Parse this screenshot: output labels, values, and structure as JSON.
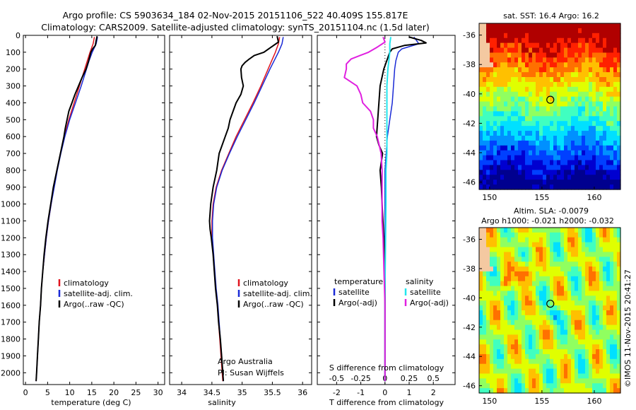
{
  "header": {
    "line1": "Argo profile: CS 5903634_184 02-Nov-2015 20151106_522 40.409S 155.817E",
    "line2": "Climatology: CARS2009. Satellite-adjusted climatology: synTS_20151104.nc (1.5d later)"
  },
  "colors": {
    "climatology": "#e0141e",
    "satellite": "#1a2ad6",
    "argo": "#000000",
    "salinity_sat": "#22e6ee",
    "salinity_argo": "#e020e0"
  },
  "chart_data": [
    {
      "type": "line",
      "name": "temperature",
      "xlabel": "temperature (deg C)",
      "xlim": [
        -0.5,
        31.5
      ],
      "xticks": [
        "0",
        "5",
        "10",
        "15",
        "20",
        "25",
        "30"
      ],
      "ylim": [
        0,
        2070
      ],
      "yticks": [
        "0",
        "100",
        "200",
        "300",
        "400",
        "500",
        "600",
        "700",
        "800",
        "900",
        "1000",
        "1100",
        "1200",
        "1300",
        "1400",
        "1500",
        "1600",
        "1700",
        "1800",
        "1900",
        "2000"
      ],
      "legend": [
        "climatology",
        "satellite-adj. clim.",
        "Argo(..raw -QC)"
      ],
      "series": [
        {
          "name": "climatology",
          "depth": [
            10,
            50,
            100,
            150,
            200,
            300,
            400,
            500,
            600,
            700,
            800,
            900,
            1000,
            1100,
            1200,
            1300,
            1400,
            1500,
            1600,
            1700,
            1800,
            1900,
            2000,
            2050
          ],
          "values": [
            15.6,
            15.3,
            14.6,
            14.0,
            13.4,
            12.2,
            11.0,
            9.8,
            8.8,
            7.9,
            7.1,
            6.4,
            5.8,
            5.2,
            4.7,
            4.3,
            3.9,
            3.6,
            3.4,
            3.1,
            2.9,
            2.7,
            2.5,
            2.4
          ]
        },
        {
          "name": "satellite",
          "depth": [
            10,
            50,
            100,
            150,
            200,
            300,
            400,
            500,
            600,
            700,
            800,
            900,
            1000,
            1100,
            1200,
            1300,
            1400,
            1500,
            1600,
            1700,
            1800,
            1900,
            2000,
            2050
          ],
          "values": [
            16.3,
            16.0,
            15.1,
            14.4,
            13.8,
            12.6,
            11.3,
            10.0,
            8.9,
            8.0,
            7.2,
            6.5,
            5.8,
            5.2,
            4.7,
            4.3,
            3.9,
            3.6,
            3.4,
            3.1,
            2.9,
            2.7,
            2.5,
            2.4
          ]
        },
        {
          "name": "argo",
          "depth": [
            5,
            30,
            60,
            80,
            100,
            150,
            200,
            250,
            300,
            350,
            400,
            450,
            500,
            550,
            600,
            700,
            800,
            900,
            1000,
            1100,
            1200,
            1300,
            1400,
            1500,
            1600,
            1700,
            1800,
            1900,
            2000,
            2050
          ],
          "values": [
            16.2,
            16.0,
            15.8,
            15.2,
            14.8,
            14.3,
            13.7,
            12.8,
            12.0,
            11.2,
            10.5,
            9.8,
            9.4,
            9.0,
            8.7,
            7.9,
            7.1,
            6.3,
            5.7,
            5.1,
            4.6,
            4.2,
            3.9,
            3.6,
            3.4,
            3.1,
            2.9,
            2.7,
            2.5,
            2.4
          ]
        }
      ]
    },
    {
      "type": "line",
      "name": "salinity",
      "xlabel": "salinity",
      "xlim": [
        33.8,
        36.15
      ],
      "xticks": [
        "34",
        "34.5",
        "35",
        "35.5",
        "36"
      ],
      "ylim": [
        0,
        2070
      ],
      "legend": [
        "climatology",
        "satellite-adj. clim.",
        "Argo(..raw -QC)"
      ],
      "annotation": [
        "Argo Australia",
        "PI: Susan Wijffels"
      ],
      "series": [
        {
          "name": "climatology",
          "depth": [
            10,
            50,
            100,
            150,
            200,
            300,
            400,
            500,
            600,
            700,
            800,
            900,
            1000,
            1100,
            1200,
            1300,
            1400,
            1500,
            1600,
            1700,
            1800,
            1900,
            2000,
            2050
          ],
          "values": [
            35.62,
            35.6,
            35.55,
            35.49,
            35.43,
            35.31,
            35.18,
            35.04,
            34.9,
            34.78,
            34.66,
            34.57,
            34.52,
            34.5,
            34.5,
            34.52,
            34.54,
            34.56,
            34.59,
            34.61,
            34.63,
            34.65,
            34.67,
            34.68
          ]
        },
        {
          "name": "satellite",
          "depth": [
            10,
            50,
            100,
            150,
            200,
            300,
            400,
            500,
            600,
            700,
            800,
            900,
            1000,
            1100,
            1200,
            1300,
            1400,
            1500,
            1600,
            1700,
            1800,
            1900,
            2000,
            2050
          ],
          "values": [
            35.68,
            35.66,
            35.6,
            35.53,
            35.46,
            35.33,
            35.2,
            35.06,
            34.92,
            34.79,
            34.67,
            34.58,
            34.53,
            34.51,
            34.51,
            34.53,
            34.55,
            34.57,
            34.6,
            34.62,
            34.64,
            34.66,
            34.68,
            34.69
          ]
        },
        {
          "name": "argo",
          "depth": [
            5,
            40,
            70,
            100,
            120,
            140,
            160,
            180,
            200,
            250,
            300,
            350,
            400,
            450,
            500,
            550,
            600,
            700,
            800,
            900,
            1000,
            1100,
            1150,
            1200,
            1300,
            1400,
            1500,
            1600,
            1700,
            1800,
            1900,
            2000,
            2050
          ],
          "values": [
            35.58,
            35.6,
            35.48,
            35.36,
            35.2,
            35.12,
            35.05,
            35.0,
            34.98,
            34.99,
            35.02,
            34.98,
            34.9,
            34.85,
            34.8,
            34.77,
            34.72,
            34.62,
            34.58,
            34.52,
            34.48,
            34.46,
            34.47,
            34.49,
            34.52,
            34.54,
            34.56,
            34.59,
            34.61,
            34.64,
            34.66,
            34.68,
            34.69
          ]
        }
      ]
    },
    {
      "type": "line",
      "name": "difference",
      "xlabel": "T difference from climatology",
      "xlabel_top": "S difference from climatology",
      "xlim": [
        -2.8,
        2.9
      ],
      "xticks": [
        "-2",
        "-1",
        "0",
        "1",
        "2"
      ],
      "xticks_top": [
        "-0.5",
        "-0.25",
        "0",
        "0.25",
        "0.5"
      ],
      "legend_temperature": [
        "temperature",
        "satellite",
        "Argo(-adj)"
      ],
      "legend_salinity": [
        "salinity",
        "satellite",
        "Argo(-adj)"
      ],
      "series": [
        {
          "name": "T satellite",
          "depth": [
            10,
            30,
            50,
            80,
            100,
            150,
            200,
            300,
            400,
            500,
            600,
            700,
            800,
            1000,
            1200,
            1500,
            2050
          ],
          "values": [
            1.2,
            1.3,
            1.4,
            0.7,
            0.55,
            0.45,
            0.4,
            0.35,
            0.3,
            0.2,
            0.1,
            0.05,
            0.0,
            0.0,
            0.0,
            0.0,
            0.0
          ]
        },
        {
          "name": "T argo",
          "depth": [
            10,
            30,
            45,
            60,
            80,
            100,
            200,
            300,
            400,
            500,
            600,
            650,
            700,
            800,
            900,
            1000,
            1200,
            1400,
            1600,
            2000,
            2050
          ],
          "values": [
            1.0,
            1.5,
            1.7,
            0.8,
            0.3,
            0.2,
            -0.05,
            -0.2,
            -0.25,
            -0.3,
            -0.35,
            -0.25,
            -0.1,
            -0.2,
            -0.15,
            -0.12,
            -0.05,
            0.0,
            0.0,
            0.0,
            0.0
          ]
        },
        {
          "name": "S satellite",
          "depth": [
            10,
            50,
            100,
            150,
            200,
            300,
            400,
            500,
            600,
            700,
            800,
            1000,
            1500,
            2050
          ],
          "values": [
            0.06,
            0.05,
            0.05,
            0.04,
            0.03,
            0.02,
            0.02,
            0.02,
            0.02,
            0.02,
            0.01,
            0.01,
            0.0,
            0.0
          ]
        },
        {
          "name": "S argo",
          "depth": [
            10,
            40,
            70,
            100,
            140,
            170,
            200,
            250,
            300,
            350,
            400,
            450,
            500,
            550,
            600,
            700,
            800,
            900,
            1000,
            1100,
            1200,
            1400,
            1600,
            2050
          ],
          "values": [
            -0.02,
            0.0,
            -0.08,
            -0.17,
            -0.35,
            -0.4,
            -0.4,
            -0.42,
            -0.29,
            -0.25,
            -0.23,
            -0.15,
            -0.12,
            -0.12,
            -0.08,
            -0.04,
            -0.03,
            -0.03,
            -0.03,
            -0.03,
            -0.02,
            -0.01,
            0.0,
            0.0
          ]
        }
      ]
    },
    {
      "type": "heatmap",
      "name": "sst_map",
      "title": "sat. SST: 16.4 Argo: 16.2",
      "xlim": [
        149,
        162.5
      ],
      "ylim": [
        -46.5,
        -35.2
      ],
      "xticks": [
        "150",
        "155",
        "160"
      ],
      "yticks": [
        "-36",
        "-38",
        "-40",
        "-42",
        "-44",
        "-46"
      ],
      "marker": [
        155.8,
        -40.4
      ]
    },
    {
      "type": "heatmap",
      "name": "sla_map",
      "title1": "Altim. SLA: -0.0079",
      "title2": "Argo h1000: -0.021 h2000: -0.032",
      "xlim": [
        149,
        162.5
      ],
      "ylim": [
        -46.5,
        -35.2
      ],
      "xticks": [
        "150",
        "155",
        "160"
      ],
      "yticks": [
        "-36",
        "-38",
        "-40",
        "-42",
        "-44",
        "-46"
      ],
      "marker": [
        155.8,
        -40.4
      ]
    }
  ],
  "footer": {
    "credit": "©IMOS 11-Nov-2015 20:41:27"
  }
}
